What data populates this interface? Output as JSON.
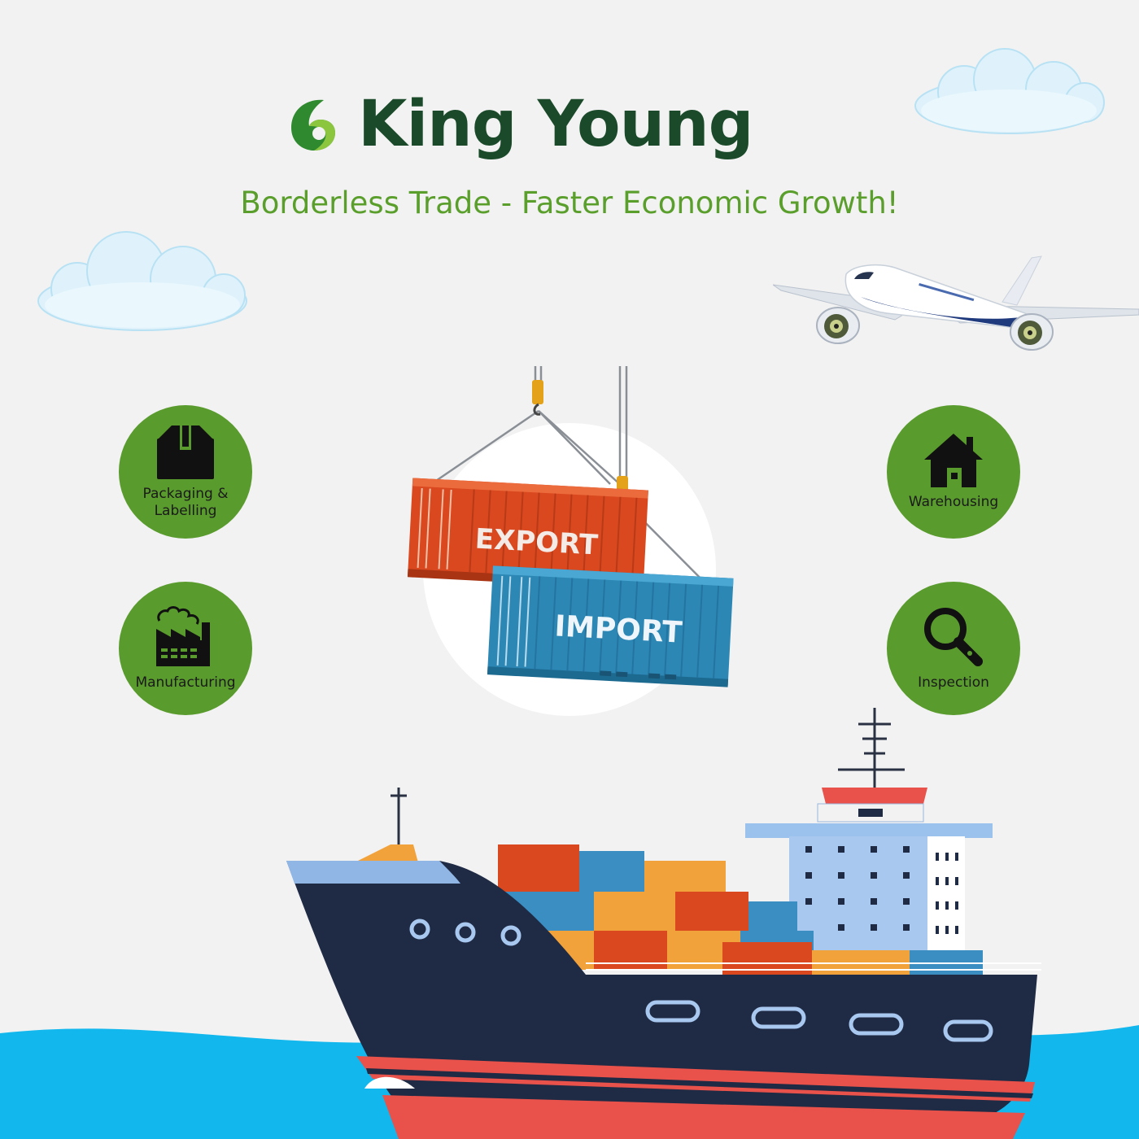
{
  "brand": {
    "name": "King Young",
    "tagline": "Borderless Trade - Faster Economic Growth!",
    "primary_color": "#1b4a2a",
    "accent_color": "#5a9e2c"
  },
  "services": [
    {
      "label": "Packaging & Labelling",
      "icon": "package-icon"
    },
    {
      "label": "Manufacturing",
      "icon": "factory-icon"
    },
    {
      "label": "Warehousing",
      "icon": "house-icon"
    },
    {
      "label": "Inspection",
      "icon": "magnifier-icon"
    }
  ],
  "containers": {
    "export_label": "EXPORT",
    "import_label": "IMPORT"
  },
  "colors": {
    "circle_green": "#5a9b2e",
    "export_red": "#d9481f",
    "import_blue": "#2c87b5",
    "hull_navy": "#1f2a44",
    "sea_blue": "#12b7ee"
  }
}
